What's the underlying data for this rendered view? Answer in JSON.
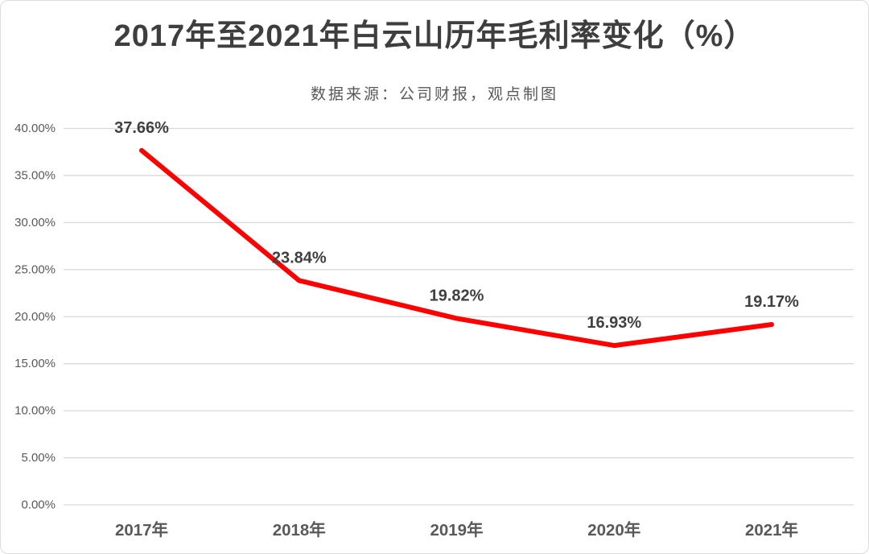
{
  "title": "2017年至2021年白云山历年毛利率变化（%）",
  "subtitle": "数据来源：公司财报，观点制图",
  "colors": {
    "line": "#fe0000",
    "grid": "#d9d9d9",
    "tick_label": "#595959",
    "data_label": "#404040",
    "title": "#3e3e3e",
    "frame_border": "#dcdcdc",
    "background": "#ffffff"
  },
  "chart_data": {
    "type": "line",
    "title": "2017年至2021年白云山历年毛利率变化（%）",
    "subtitle": "数据来源：公司财报，观点制图",
    "categories": [
      "2017年",
      "2018年",
      "2019年",
      "2020年",
      "2021年"
    ],
    "values": [
      37.66,
      23.84,
      19.82,
      16.93,
      19.17
    ],
    "data_labels": [
      "37.66%",
      "23.84%",
      "19.82%",
      "16.93%",
      "19.17%"
    ],
    "xlabel": "",
    "ylabel": "",
    "ylim": [
      0,
      40
    ],
    "ytick_step": 5,
    "ytick_labels": [
      "0.00%",
      "5.00%",
      "10.00%",
      "15.00%",
      "20.00%",
      "25.00%",
      "30.00%",
      "35.00%",
      "40.00%"
    ],
    "grid": true,
    "legend": false,
    "series_name": "毛利率"
  }
}
